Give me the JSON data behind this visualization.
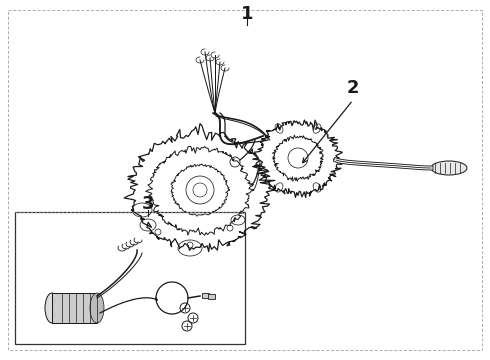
{
  "bg": "#ffffff",
  "lc": "#1a1a1a",
  "border_color": "#888888",
  "fig_w": 4.9,
  "fig_h": 3.6,
  "dpi": 100,
  "label_1": "1",
  "label_2": "2",
  "label_3": "3",
  "lfs": 13
}
